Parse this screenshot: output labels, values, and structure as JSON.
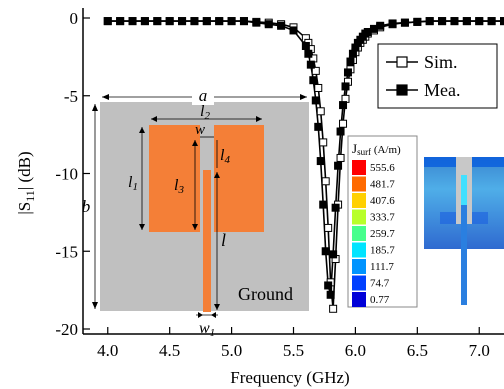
{
  "chart_data": {
    "type": "line",
    "xlabel": "Frequency (GHz)",
    "ylabel": "|S11| (dB)",
    "ylabel_main": "|S",
    "ylabel_sub": "11",
    "ylabel_tail": "| (dB)",
    "xlim": [
      3.8,
      7.2
    ],
    "ylim": [
      -20,
      0
    ],
    "xticks": [
      "4.0",
      "4.5",
      "5.0",
      "5.5",
      "6.0",
      "6.5",
      "7.0"
    ],
    "xtick_values": [
      4.0,
      4.5,
      5.0,
      5.5,
      6.0,
      6.5,
      7.0
    ],
    "yticks": [
      "0",
      "-5",
      "-10",
      "-15",
      "-20"
    ],
    "ytick_values": [
      0,
      -5,
      -10,
      -15,
      -20
    ],
    "grid": false,
    "legend_position": "top-right",
    "series": [
      {
        "name": "Sim.",
        "marker": "open-square",
        "x": [
          4.0,
          4.1,
          4.2,
          4.3,
          4.4,
          4.5,
          4.6,
          4.7,
          4.8,
          4.9,
          5.0,
          5.1,
          5.2,
          5.3,
          5.4,
          5.5,
          5.6,
          5.62,
          5.64,
          5.66,
          5.68,
          5.7,
          5.72,
          5.74,
          5.76,
          5.78,
          5.8,
          5.82,
          5.84,
          5.86,
          5.88,
          5.9,
          5.92,
          5.94,
          5.96,
          5.98,
          6.0,
          6.02,
          6.04,
          6.06,
          6.08,
          6.1,
          6.15,
          6.2,
          6.3,
          6.4,
          6.5,
          6.6,
          6.7,
          6.8,
          6.9,
          7.0,
          7.1,
          7.2
        ],
        "y": [
          -0.2,
          -0.2,
          -0.2,
          -0.2,
          -0.2,
          -0.2,
          -0.2,
          -0.2,
          -0.2,
          -0.2,
          -0.2,
          -0.2,
          -0.25,
          -0.3,
          -0.4,
          -0.6,
          -1.3,
          -1.6,
          -2.0,
          -2.6,
          -3.4,
          -4.5,
          -6.0,
          -8.0,
          -10.5,
          -13.5,
          -17.0,
          -18.7,
          -15.5,
          -12.0,
          -9.0,
          -6.8,
          -5.2,
          -4.1,
          -3.3,
          -2.7,
          -2.2,
          -1.9,
          -1.6,
          -1.4,
          -1.2,
          -1.0,
          -0.8,
          -0.6,
          -0.4,
          -0.3,
          -0.25,
          -0.2,
          -0.2,
          -0.2,
          -0.2,
          -0.2,
          -0.2,
          -0.2
        ]
      },
      {
        "name": "Mea.",
        "marker": "filled-square",
        "x": [
          4.0,
          4.1,
          4.2,
          4.3,
          4.4,
          4.5,
          4.6,
          4.7,
          4.8,
          4.9,
          5.0,
          5.1,
          5.2,
          5.3,
          5.4,
          5.5,
          5.6,
          5.62,
          5.64,
          5.66,
          5.68,
          5.7,
          5.72,
          5.74,
          5.76,
          5.78,
          5.8,
          5.82,
          5.84,
          5.86,
          5.88,
          5.9,
          5.92,
          5.94,
          5.96,
          5.98,
          6.0,
          6.02,
          6.04,
          6.06,
          6.08,
          6.1,
          6.15,
          6.2,
          6.3,
          6.4,
          6.5,
          6.6,
          6.7,
          6.8,
          6.9,
          7.0,
          7.1,
          7.2
        ],
        "y": [
          -0.2,
          -0.2,
          -0.2,
          -0.2,
          -0.2,
          -0.2,
          -0.2,
          -0.2,
          -0.2,
          -0.2,
          -0.2,
          -0.2,
          -0.3,
          -0.4,
          -0.5,
          -0.8,
          -1.8,
          -2.3,
          -3.0,
          -4.0,
          -5.3,
          -7.0,
          -9.2,
          -12.0,
          -15.0,
          -17.2,
          -17.8,
          -15.2,
          -12.2,
          -9.5,
          -7.3,
          -5.6,
          -4.4,
          -3.5,
          -2.8,
          -2.3,
          -1.9,
          -1.6,
          -1.4,
          -1.2,
          -1.0,
          -0.9,
          -0.7,
          -0.5,
          -0.35,
          -0.3,
          -0.25,
          -0.2,
          -0.2,
          -0.2,
          -0.2,
          -0.2,
          -0.2,
          -0.2
        ]
      }
    ],
    "inset_antenna": {
      "substrate_color": "#c0c0c0",
      "patch_color": "#f47f37",
      "ground_label": "Ground",
      "dimension_labels": {
        "a": "a",
        "b": "b",
        "l1": "l",
        "l1_sub": "1",
        "l2": "l",
        "l2_sub": "2",
        "l3": "l",
        "l3_sub": "3",
        "l4": "l",
        "l4_sub": "4",
        "l": "l",
        "w": "w",
        "w1": "w",
        "w1_sub": "1"
      }
    },
    "inset_current": {
      "title_main": "J",
      "title_sub": "surf",
      "title_unit": " (A/m)",
      "scale_labels": [
        "555.6",
        "481.7",
        "407.6",
        "333.7",
        "259.7",
        "185.7",
        "111.7",
        "74.7",
        "0.77"
      ],
      "scale_colors": [
        "#ff0000",
        "#ff6a00",
        "#ffd000",
        "#b8ff2a",
        "#46ff8c",
        "#00e4ff",
        "#0094ff",
        "#0040ff",
        "#0000d8"
      ]
    }
  }
}
